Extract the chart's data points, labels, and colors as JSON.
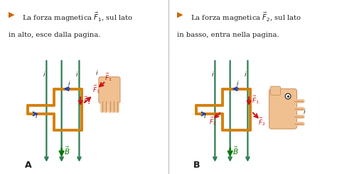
{
  "bg_white": "#ffffff",
  "bg_panel": "#fdf5e0",
  "divider_color": "#bbbbbb",
  "text_color": "#1a1a1a",
  "orange_color": "#d4800a",
  "teal_color": "#2e7d52",
  "blue_color": "#1a44bb",
  "red_color": "#cc1111",
  "green_dark": "#007700",
  "skin_color": "#f0c090",
  "skin_edge": "#c89060",
  "triangle_color": "#cc6600",
  "label_A": "A",
  "label_B": "B",
  "title_left1": "La forza magnetica ",
  "title_left_math": "$\\vec{F}_1$",
  "title_left2": ", sul lato",
  "title_left3": "in alto, esce dalla pagina.",
  "title_right1": "La forza magnetica ",
  "title_right_math": "$\\vec{F}_2$",
  "title_right2": ", sul lato",
  "title_right3": "in basso, entra nella pagina."
}
